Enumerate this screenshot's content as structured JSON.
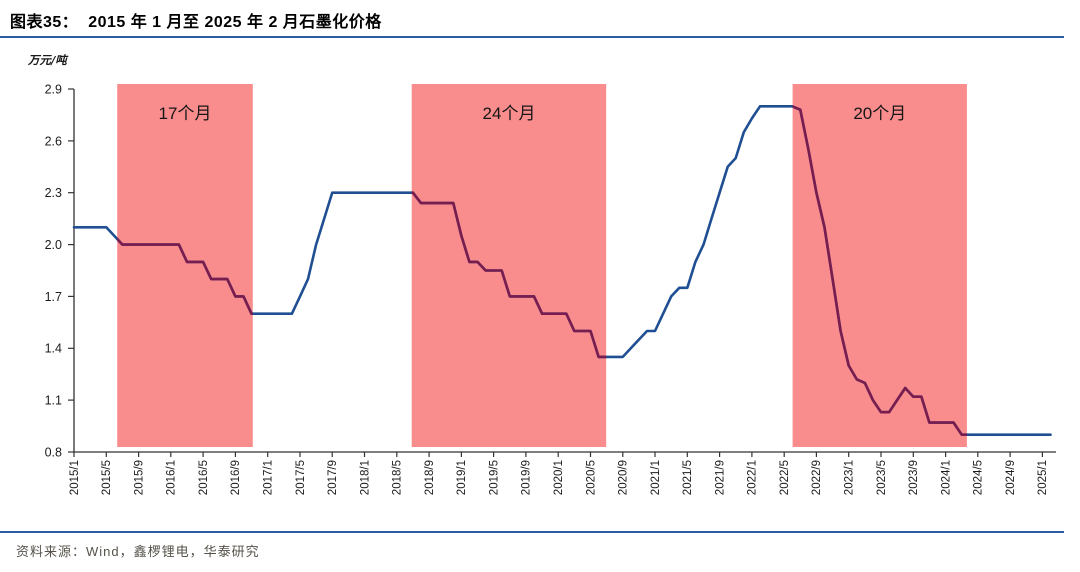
{
  "header": {
    "figure_label": "图表35：",
    "title": "图表35：  2015 年 1 月至 2025 年 2 月石墨化价格"
  },
  "footer": {
    "source": "资料来源：Wind，鑫椤锂电，华泰研究"
  },
  "chart_data": {
    "type": "line",
    "title": "2015年1月至2025年2月石墨化价格",
    "unit_label": "万元/吨",
    "xlabel": "",
    "ylabel": "万元/吨",
    "ylim": [
      0.8,
      2.9
    ],
    "yticks": [
      0.8,
      1.1,
      1.4,
      1.7,
      2.0,
      2.3,
      2.6,
      2.9
    ],
    "grid": false,
    "legend": "none",
    "x_tick_labels": [
      "2015/1",
      "2015/5",
      "2015/9",
      "2016/1",
      "2016/5",
      "2016/9",
      "2017/1",
      "2017/5",
      "2017/9",
      "2018/1",
      "2018/5",
      "2018/9",
      "2019/1",
      "2019/5",
      "2019/9",
      "2020/1",
      "2020/5",
      "2020/9",
      "2021/1",
      "2021/5",
      "2021/9",
      "2022/1",
      "2022/5",
      "2022/9",
      "2023/1",
      "2023/5",
      "2023/9",
      "2024/1",
      "2024/5",
      "2024/9",
      "2025/1"
    ],
    "x_months_start": "2015/1",
    "x_months_end": "2025/2",
    "series": [
      {
        "name": "石墨化价格",
        "frequency": "monthly",
        "values": [
          2.1,
          2.1,
          2.1,
          2.1,
          2.1,
          2.05,
          2.0,
          2.0,
          2.0,
          2.0,
          2.0,
          2.0,
          2.0,
          2.0,
          1.9,
          1.9,
          1.9,
          1.8,
          1.8,
          1.8,
          1.7,
          1.7,
          1.6,
          1.6,
          1.6,
          1.6,
          1.6,
          1.6,
          1.7,
          1.8,
          2.0,
          2.15,
          2.3,
          2.3,
          2.3,
          2.3,
          2.3,
          2.3,
          2.3,
          2.3,
          2.3,
          2.3,
          2.3,
          2.24,
          2.24,
          2.24,
          2.24,
          2.24,
          2.05,
          1.9,
          1.9,
          1.85,
          1.85,
          1.85,
          1.7,
          1.7,
          1.7,
          1.7,
          1.6,
          1.6,
          1.6,
          1.6,
          1.5,
          1.5,
          1.5,
          1.35,
          1.35,
          1.35,
          1.35,
          1.4,
          1.45,
          1.5,
          1.5,
          1.6,
          1.7,
          1.75,
          1.75,
          1.9,
          2.0,
          2.15,
          2.3,
          2.45,
          2.5,
          2.65,
          2.73,
          2.8,
          2.8,
          2.8,
          2.8,
          2.8,
          2.78,
          2.55,
          2.3,
          2.1,
          1.8,
          1.5,
          1.3,
          1.22,
          1.2,
          1.1,
          1.03,
          1.03,
          1.1,
          1.17,
          1.12,
          1.12,
          0.97,
          0.97,
          0.97,
          0.97,
          0.9,
          0.9,
          0.9,
          0.9,
          0.9,
          0.9,
          0.9,
          0.9,
          0.9,
          0.9,
          0.9,
          0.9
        ]
      }
    ],
    "regions": [
      {
        "label": "17个月",
        "start_month_index": 5.35,
        "end_month_index": 22.15
      },
      {
        "label": "24个月",
        "start_month_index": 41.85,
        "end_month_index": 65.95
      },
      {
        "label": "20个月",
        "start_month_index": 89.05,
        "end_month_index": 110.65
      }
    ],
    "colors": {
      "line": "#1f4f92",
      "line_in_region": "#7a1c4e",
      "region_fill": "#f98d8d",
      "axis": "#333333",
      "tick_text": "#1c1c1c",
      "region_label_text": "#161616",
      "rule": "#2b5ba1",
      "source_text": "#56524a"
    }
  }
}
